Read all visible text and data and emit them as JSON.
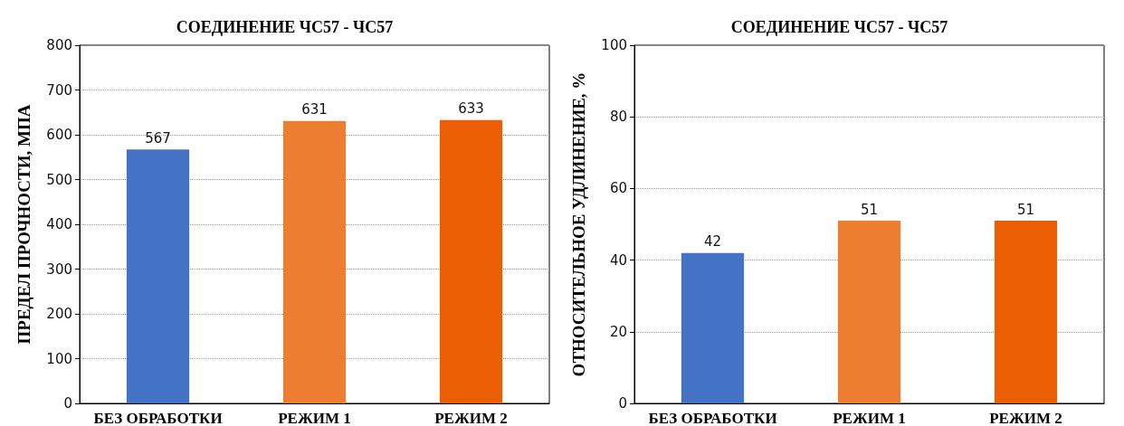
{
  "chart_data": [
    {
      "type": "bar",
      "title": "СОЕДИНЕНИЕ ЧС57 - ЧС57",
      "ylabel": "ПРЕДЕЛ ПРОЧНОСТИ, МПА",
      "categories": [
        "БЕЗ ОБРАБОТКИ",
        "РЕЖИМ 1",
        "РЕЖИМ 2"
      ],
      "values": [
        567,
        631,
        633
      ],
      "colors": [
        "#4472c4",
        "#ed7d31",
        "#eb5e04"
      ],
      "ylim": [
        0,
        800
      ],
      "yticks": [
        0,
        100,
        200,
        300,
        400,
        500,
        600,
        700,
        800
      ],
      "grid": "y",
      "data_labels": true
    },
    {
      "type": "bar",
      "title": "СОЕДИНЕНИЕ ЧС57 - ЧС57",
      "ylabel": "ОТНОСИТЕЛЬНОЕ УДЛИНЕНИЕ, %",
      "categories": [
        "БЕЗ ОБРАБОТКИ",
        "РЕЖИМ 1",
        "РЕЖИМ 2"
      ],
      "values": [
        42,
        51,
        51
      ],
      "colors": [
        "#4472c4",
        "#ed7d31",
        "#eb5e04"
      ],
      "ylim": [
        0,
        100
      ],
      "yticks": [
        0,
        20,
        40,
        60,
        80,
        100
      ],
      "grid": "y",
      "data_labels": true
    }
  ]
}
